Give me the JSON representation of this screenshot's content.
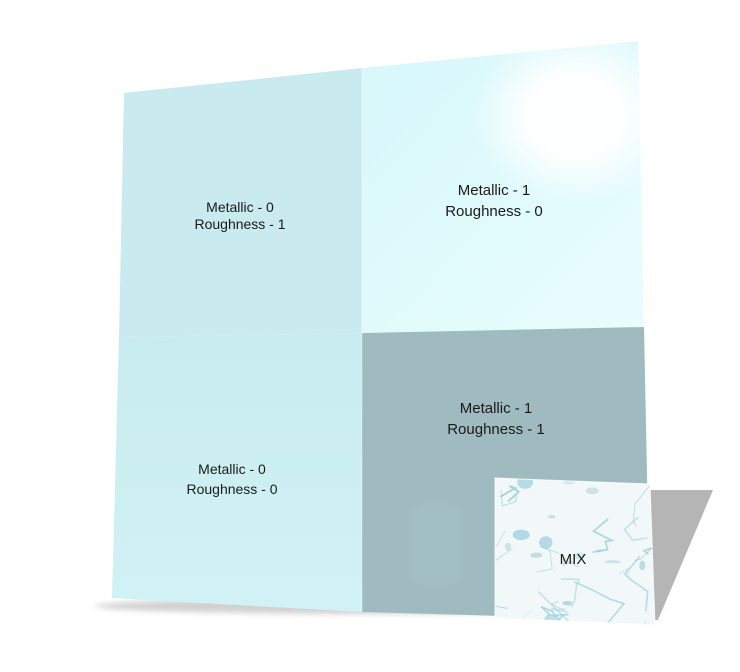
{
  "quadrants": {
    "top_left": {
      "line1": "Metallic - 0",
      "line2": "Roughness - 1"
    },
    "top_right": {
      "line1": "Metallic - 1",
      "line2": "Roughness - 0"
    },
    "bottom_left": {
      "line1": "Metallic - 0",
      "line2": "Roughness - 0"
    },
    "bottom_right": {
      "line1": "Metallic - 1",
      "line2": "Roughness - 1"
    }
  },
  "mix_tile": {
    "label": "MIX"
  },
  "colors": {
    "background": "#ffffff",
    "top_left": "#c9eaee",
    "top_right": "#e4fbfd",
    "bottom_left": "#cbeff2",
    "bottom_right": "#9fbbbf",
    "mix_base": "#f2f8f9",
    "mix_vein": "#9fd0da",
    "shadow": "#b5b5b5",
    "text": "#1a1a1a"
  }
}
